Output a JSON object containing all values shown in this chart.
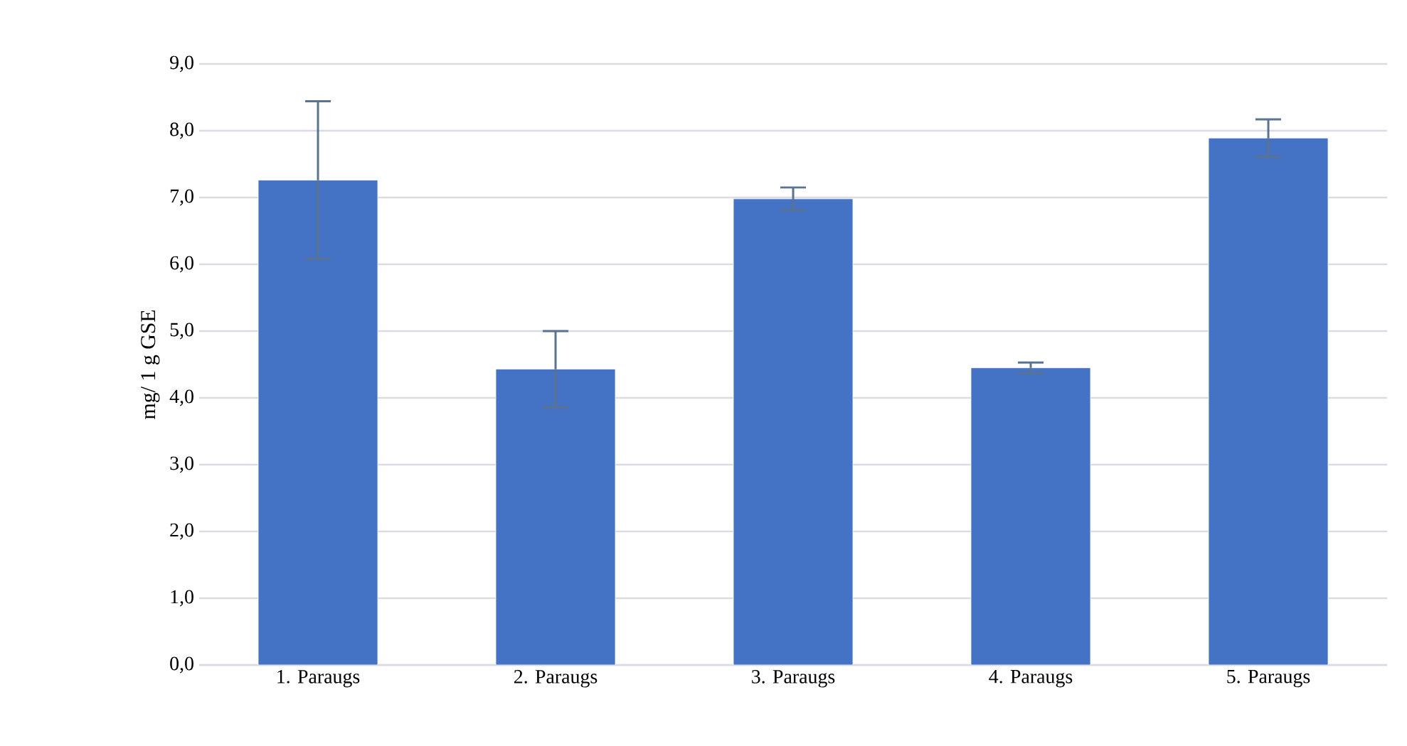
{
  "chart_data": {
    "type": "bar",
    "ylabel": "mg/ 1 g GSE",
    "categories": [
      "1. Paraugs",
      "2. Paraugs",
      "3. Paraugs",
      "4. Paraugs",
      "5. Paraugs"
    ],
    "values": [
      7.26,
      4.43,
      6.98,
      4.45,
      7.89
    ],
    "errors": [
      1.18,
      0.57,
      0.17,
      0.08,
      0.28
    ],
    "color": "#4472c4",
    "grid": "y",
    "ylim": [
      0,
      9
    ],
    "yticks": [
      {
        "value": 0,
        "label": "0,0"
      },
      {
        "value": 1,
        "label": "1,0"
      },
      {
        "value": 2,
        "label": "2,0"
      },
      {
        "value": 3,
        "label": "3,0"
      },
      {
        "value": 4,
        "label": "4,0"
      },
      {
        "value": 5,
        "label": "5,0"
      },
      {
        "value": 6,
        "label": "6,0"
      },
      {
        "value": 7,
        "label": "7,0"
      },
      {
        "value": 8,
        "label": "8,0"
      },
      {
        "value": 9,
        "label": "9,0"
      }
    ]
  }
}
